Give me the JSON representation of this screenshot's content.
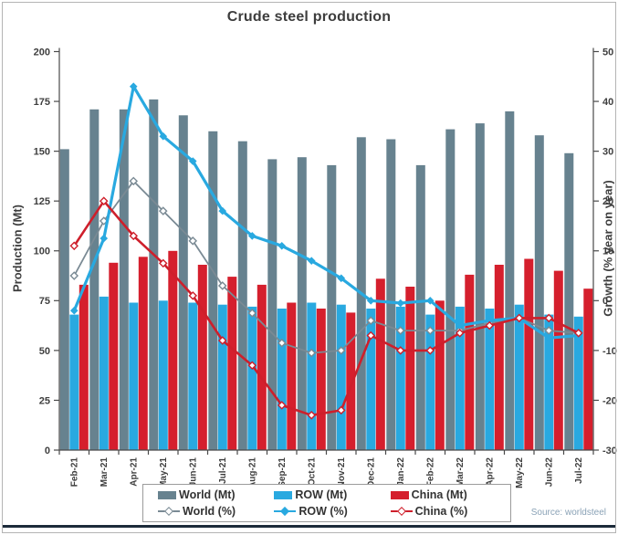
{
  "title": "Crude steel production",
  "source": "Source: worldsteel",
  "chart_data": {
    "type": "bar+line (dual axis combo)",
    "title": "Crude steel production",
    "categories": [
      "Feb-21",
      "Mar-21",
      "Apr-21",
      "May-21",
      "Jun-21",
      "Jul-21",
      "Aug-21",
      "Sep-21",
      "Oct-21",
      "Nov-21",
      "Dec-21",
      "Jan-22",
      "Feb-22",
      "Mar-22",
      "Apr-22",
      "May-22",
      "Jun-22",
      "Jul-22"
    ],
    "bar_series": [
      {
        "name": "World (Mt)",
        "axis": "left",
        "color": "#67828F",
        "values": [
          151,
          171,
          171,
          176,
          168,
          160,
          155,
          146,
          147,
          143,
          157,
          156,
          143,
          161,
          164,
          170,
          158,
          149
        ]
      },
      {
        "name": "ROW (Mt)",
        "axis": "left",
        "color": "#29A9E0",
        "values": [
          68,
          77,
          74,
          75,
          74,
          73,
          72,
          71,
          74,
          73,
          71,
          72,
          68,
          72,
          71,
          73,
          68,
          67
        ]
      },
      {
        "name": "China (Mt)",
        "axis": "left",
        "color": "#D51F2D",
        "values": [
          83,
          94,
          97,
          100,
          93,
          87,
          83,
          74,
          71,
          69,
          86,
          82,
          75,
          88,
          93,
          96,
          90,
          81
        ]
      }
    ],
    "line_series": [
      {
        "name": "World (%)",
        "axis": "right",
        "color": "#7A8A94",
        "marker": "open-diamond",
        "values": [
          5,
          16,
          24,
          18,
          12,
          3,
          -2.5,
          -8.5,
          -10.5,
          -10,
          -4,
          -6,
          -6,
          -6,
          -4.5,
          -3.5,
          -6,
          -6.5
        ]
      },
      {
        "name": "ROW (%)",
        "axis": "right",
        "color": "#29A9E0",
        "marker": "solid-diamond",
        "values": [
          -2,
          12.5,
          43,
          33,
          28,
          18,
          13,
          11,
          8,
          4.5,
          0,
          -0.5,
          0,
          -5,
          -4,
          -3.5,
          -7.5,
          -7
        ]
      },
      {
        "name": "China (%)",
        "axis": "right",
        "color": "#CE1F2B",
        "marker": "open-diamond",
        "values": [
          11,
          20,
          13,
          7.5,
          1,
          -8,
          -13,
          -21,
          -23,
          -22,
          -7,
          -10,
          -10,
          -6.5,
          -5,
          -3.5,
          -3.5,
          -6.5
        ]
      }
    ],
    "left_axis": {
      "title": "Production (Mt)",
      "min": 0,
      "max": 200,
      "ticks": [
        0,
        25,
        50,
        75,
        100,
        125,
        150,
        175,
        200
      ]
    },
    "right_axis": {
      "title": "Growth (% year on year)",
      "min": -30,
      "max": 50,
      "ticks": [
        -30,
        -20,
        -10,
        0,
        10,
        20,
        30,
        40,
        50
      ]
    },
    "legend": {
      "position": "bottom",
      "items": [
        "World (Mt)",
        "ROW (Mt)",
        "China (Mt)",
        "World (%)",
        "ROW (%)",
        "China (%)"
      ]
    },
    "grid": "off"
  }
}
